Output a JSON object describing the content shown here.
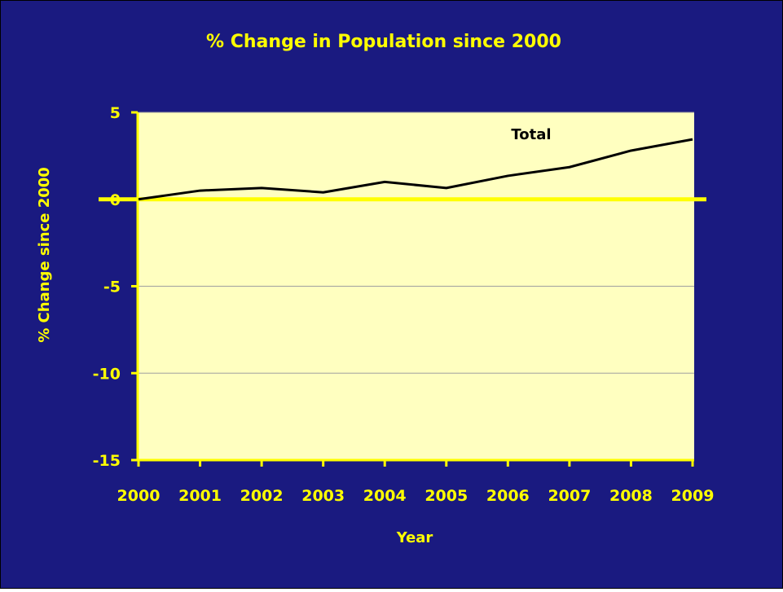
{
  "colors": {
    "background": "#1a1a80",
    "plot_area": "#ffffc0",
    "text": "#ffff00",
    "axis": "#ffff00",
    "gridline": "#a0a0a0",
    "series_line": "#000000",
    "series_label": "#000000"
  },
  "chart_data": {
    "type": "line",
    "title": "% Change in Population since 2000",
    "xlabel": "Year",
    "ylabel": "% Change since 2000",
    "categories": [
      "2000",
      "2001",
      "2002",
      "2003",
      "2004",
      "2005",
      "2006",
      "2007",
      "2008",
      "2009"
    ],
    "ylim": [
      -15,
      5
    ],
    "yticks": [
      5,
      0,
      -5,
      -10,
      -15
    ],
    "grid": true,
    "series": [
      {
        "name": "Total",
        "values": [
          0.0,
          0.5,
          0.65,
          0.4,
          1.0,
          0.65,
          1.35,
          1.85,
          2.8,
          3.45
        ]
      }
    ]
  }
}
